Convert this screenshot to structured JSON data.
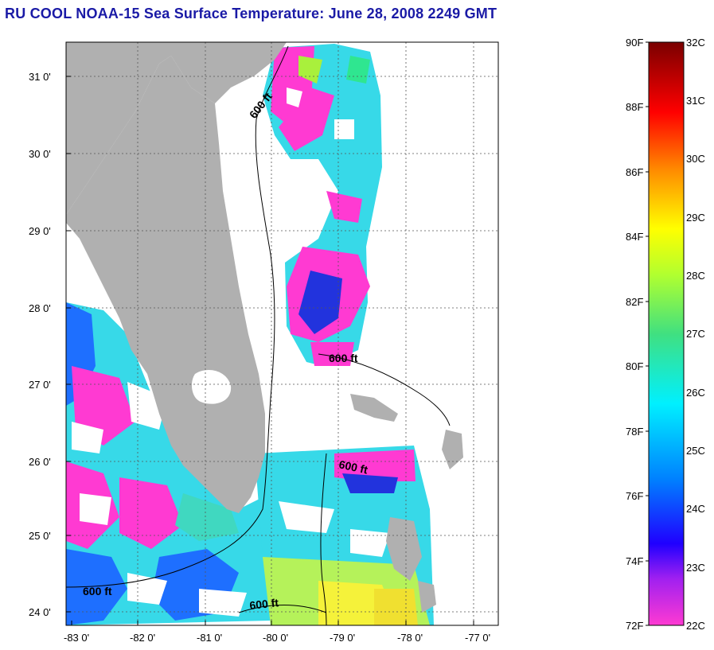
{
  "title": "RU COOL  NOAA-15  Sea Surface Temperature:  June 28, 2008 2249 GMT",
  "map": {
    "x_ticks": [
      "-83 0'",
      "-82 0'",
      "-81 0'",
      "-80 0'",
      "-79 0'",
      "-78 0'",
      "-77 0'"
    ],
    "y_ticks": [
      "31 0'",
      "30 0'",
      "29 0'",
      "28 0'",
      "27 0'",
      "26 0'",
      "25 0'",
      "24 0'"
    ],
    "lon_range": [
      -83,
      -76.8
    ],
    "lat_range": [
      23.85,
      31.45
    ],
    "grid": true,
    "contour_labels": [
      "600 ft",
      "600 ft",
      "600 ft",
      "600 ft",
      "600 ft"
    ]
  },
  "colorbar": {
    "f_labels": [
      "90F",
      "88F",
      "86F",
      "84F",
      "82F",
      "80F",
      "78F",
      "76F",
      "74F",
      "72F"
    ],
    "c_labels": [
      "32C",
      "31C",
      "30C",
      "29C",
      "28C",
      "27C",
      "26C",
      "25C",
      "24C",
      "23C",
      "22C"
    ],
    "range_f": [
      72,
      90
    ],
    "range_c": [
      22,
      32
    ]
  },
  "colors": {
    "title": "#1a1aa6",
    "land": "#b0b0b0",
    "no_data": "#ffffff"
  }
}
